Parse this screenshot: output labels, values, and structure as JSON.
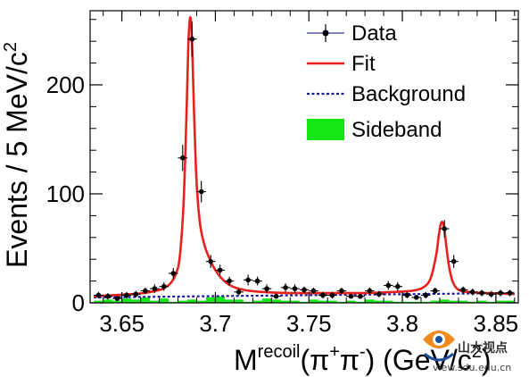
{
  "chart_data": {
    "type": "line",
    "xlabel": "M",
    "xlabel_sup": "recoil",
    "xlabel_paren": "(π",
    "xlabel_plus": "+",
    "xlabel_pi2": "π",
    "xlabel_minus": "-",
    "xlabel_tail": ") (GeV/c",
    "xlabel_exp": "2",
    "xlabel_close": ")",
    "ylabel": "Events / 5 MeV/c",
    "ylabel_exp": "2",
    "xlim": [
      3.633,
      3.862
    ],
    "ylim": [
      0,
      268
    ],
    "x_ticks": [
      3.65,
      3.7,
      3.75,
      3.8,
      3.85
    ],
    "x_tick_labels": [
      "3.65",
      "3.7",
      "3.75",
      "3.8",
      "3.85"
    ],
    "y_ticks": [
      0,
      100,
      200
    ],
    "y_tick_labels": [
      "0",
      "100",
      "200"
    ],
    "grid": false,
    "legend_position": "top-right",
    "legend": {
      "data": "Data",
      "fit": "Fit",
      "background": "Background",
      "sideband": "Sideband"
    },
    "colors": {
      "data": "#000000",
      "data_legend_line": "#3a3aa8",
      "fit": "#e8211d",
      "background": "#1a1aa0",
      "sideband": "#15e615"
    },
    "series": [
      {
        "name": "Data",
        "kind": "points",
        "x": [
          3.6375,
          3.6425,
          3.6475,
          3.6525,
          3.6575,
          3.6625,
          3.6675,
          3.6725,
          3.6775,
          3.6825,
          3.6875,
          3.6925,
          3.6975,
          3.7025,
          3.7075,
          3.7125,
          3.7175,
          3.7225,
          3.7275,
          3.7325,
          3.7375,
          3.7425,
          3.7475,
          3.7525,
          3.7575,
          3.7625,
          3.7675,
          3.7725,
          3.7775,
          3.7825,
          3.7875,
          3.7925,
          3.7975,
          3.8025,
          3.8075,
          3.8125,
          3.8175,
          3.8225,
          3.8275,
          3.8325,
          3.8375,
          3.8425,
          3.8475,
          3.8525,
          3.8575
        ],
        "y": [
          7,
          6,
          4,
          7,
          8,
          11,
          13,
          15,
          27,
          133,
          242,
          102,
          38,
          30,
          20,
          10,
          21,
          20,
          13,
          6,
          14,
          13,
          12,
          11,
          7,
          7,
          11,
          6,
          6,
          11,
          8,
          16,
          15,
          7,
          5,
          7,
          11,
          68,
          38,
          12,
          10,
          9,
          8,
          9,
          9
        ],
        "yerr": [
          3,
          3,
          2,
          3,
          3,
          3,
          4,
          4,
          5,
          12,
          16,
          10,
          6,
          5,
          4,
          3,
          5,
          4,
          4,
          2,
          4,
          4,
          3,
          3,
          3,
          3,
          3,
          2,
          2,
          3,
          3,
          4,
          4,
          3,
          2,
          3,
          3,
          8,
          6,
          3,
          3,
          3,
          3,
          3,
          3
        ]
      },
      {
        "name": "Fit",
        "kind": "line",
        "x": [
          3.635,
          3.645,
          3.655,
          3.662,
          3.668,
          3.672,
          3.676,
          3.679,
          3.681,
          3.683,
          3.6845,
          3.6855,
          3.6865,
          3.6875,
          3.6885,
          3.6895,
          3.6905,
          3.692,
          3.694,
          3.696,
          3.699,
          3.703,
          3.708,
          3.715,
          3.725,
          3.74,
          3.76,
          3.78,
          3.795,
          3.805,
          3.811,
          3.815,
          3.818,
          3.8195,
          3.8205,
          3.8215,
          3.8225,
          3.8235,
          3.825,
          3.827,
          3.83,
          3.835,
          3.845,
          3.86
        ],
        "y": [
          6,
          7,
          8,
          9,
          11,
          13,
          18,
          27,
          43,
          92,
          170,
          235,
          262,
          240,
          180,
          128,
          96,
          70,
          54,
          44,
          33,
          23,
          16,
          12,
          10,
          9,
          9,
          9,
          10,
          11,
          14,
          22,
          43,
          62,
          72,
          74,
          67,
          52,
          33,
          19,
          12,
          10,
          9,
          8
        ]
      },
      {
        "name": "Background",
        "kind": "line",
        "x": [
          3.635,
          3.86
        ],
        "y": [
          5,
          9
        ]
      },
      {
        "name": "Sideband",
        "kind": "hist",
        "x": [
          3.6375,
          3.6425,
          3.6475,
          3.6525,
          3.6575,
          3.6625,
          3.6675,
          3.6725,
          3.6775,
          3.6825,
          3.6875,
          3.6925,
          3.6975,
          3.7025,
          3.7075,
          3.7125,
          3.7175,
          3.7225,
          3.7275,
          3.7325,
          3.7375,
          3.7425,
          3.7475,
          3.7525,
          3.7575,
          3.7625,
          3.7675,
          3.7725,
          3.7775,
          3.7825,
          3.7875,
          3.7925,
          3.7975,
          3.8025,
          3.8075,
          3.8125,
          3.8175,
          3.8225,
          3.8275,
          3.8325,
          3.8375,
          3.8425,
          3.8475,
          3.8525,
          3.8575
        ],
        "y": [
          2,
          3,
          2,
          4,
          3,
          5,
          2,
          4,
          1,
          2,
          3,
          2,
          5,
          6,
          3,
          3,
          1,
          2,
          4,
          3,
          2,
          2,
          1,
          3,
          2,
          2,
          1,
          2,
          1,
          3,
          2,
          2,
          1,
          1,
          1,
          1,
          2,
          3,
          2,
          2,
          1,
          2,
          1,
          2,
          2
        ]
      }
    ]
  },
  "watermark": {
    "name": "山大视点",
    "url": "view.sdu.edu.cn"
  }
}
